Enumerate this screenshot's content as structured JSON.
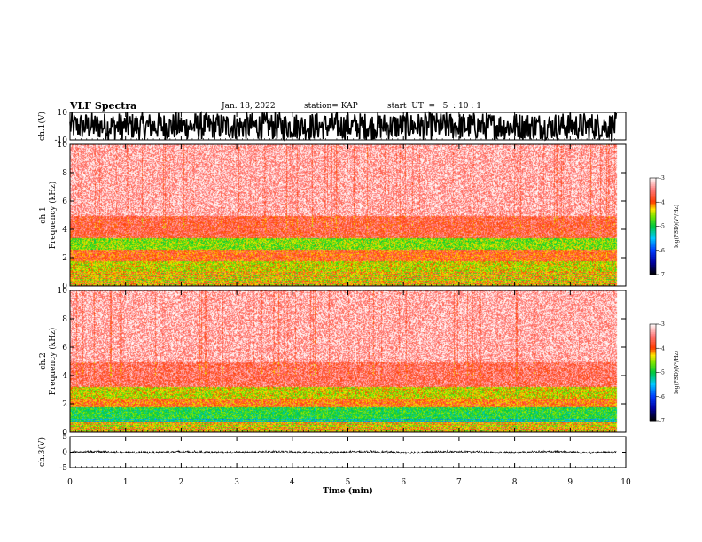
{
  "header": {
    "title": "VLF Spectra",
    "date": "Jan. 18, 2022",
    "station": "station= KAP",
    "start": "start  UT  =   5  : 10 : 1"
  },
  "chart_data": [
    {
      "type": "line",
      "panel": "ch1-waveform",
      "ylabel": "ch.1(V)",
      "ylim": [
        -10,
        10
      ],
      "yticks": [
        "10",
        "-10"
      ],
      "xlim": [
        0,
        10
      ],
      "description_values": {
        "amplitude_range": [
          -10,
          10
        ],
        "mean": 0
      }
    },
    {
      "type": "heatmap",
      "panel": "ch1-spectrogram",
      "ylabel": "ch.1\nFrequency  (kHz)",
      "ylabel_lines": [
        "ch.1",
        "Frequency  (kHz)"
      ],
      "ylim": [
        0,
        10
      ],
      "yticks": [
        "0",
        "2",
        "4",
        "6",
        "8",
        "10"
      ],
      "xlim": [
        0,
        9.83
      ],
      "colorbar": {
        "label": "log(PSD)(V²/Hz)",
        "range": [
          -7,
          -3
        ],
        "ticks": [
          "-3",
          "-4",
          "-5",
          "-6",
          "-7"
        ]
      },
      "bands": [
        {
          "fmin": 0.0,
          "fmax": 1.0,
          "level": -4.0
        },
        {
          "fmin": 1.0,
          "fmax": 1.8,
          "level": -4.4
        },
        {
          "fmin": 1.8,
          "fmax": 2.6,
          "level": -3.9
        },
        {
          "fmin": 2.6,
          "fmax": 3.4,
          "level": -4.6
        },
        {
          "fmin": 3.4,
          "fmax": 5.0,
          "level": -3.7
        },
        {
          "fmin": 5.0,
          "fmax": 10.0,
          "level": -3.3
        }
      ]
    },
    {
      "type": "heatmap",
      "panel": "ch2-spectrogram",
      "ylabel": "ch.2\nFrequency  (kHz)",
      "ylabel_lines": [
        "ch.2",
        "Frequency  (kHz)"
      ],
      "ylim": [
        0,
        10
      ],
      "yticks": [
        "0",
        "2",
        "4",
        "6",
        "8",
        "10"
      ],
      "xlim": [
        0,
        9.83
      ],
      "colorbar": {
        "label": "log(PSD)(V²/Hz)",
        "range": [
          -7,
          -3
        ],
        "ticks": [
          "-3",
          "-4",
          "-5",
          "-6",
          "-7"
        ]
      },
      "bands": [
        {
          "fmin": 0.0,
          "fmax": 0.8,
          "level": -4.0
        },
        {
          "fmin": 0.8,
          "fmax": 1.8,
          "level": -4.9
        },
        {
          "fmin": 1.8,
          "fmax": 2.4,
          "level": -4.0
        },
        {
          "fmin": 2.4,
          "fmax": 3.2,
          "level": -4.4
        },
        {
          "fmin": 3.2,
          "fmax": 5.0,
          "level": -3.6
        },
        {
          "fmin": 5.0,
          "fmax": 10.0,
          "level": -3.3
        }
      ]
    },
    {
      "type": "line",
      "panel": "ch3-waveform",
      "ylabel": "ch.3(V)",
      "ylim": [
        -5,
        5
      ],
      "yticks": [
        "5",
        "0",
        "-5"
      ],
      "xlim": [
        0,
        10
      ],
      "xlabel": "Time  (min)",
      "xticks": [
        "0",
        "1",
        "2",
        "3",
        "4",
        "5",
        "6",
        "7",
        "8",
        "9",
        "10"
      ],
      "description_values": {
        "amplitude_range": [
          -0.5,
          0.5
        ],
        "mean": 0
      }
    }
  ]
}
